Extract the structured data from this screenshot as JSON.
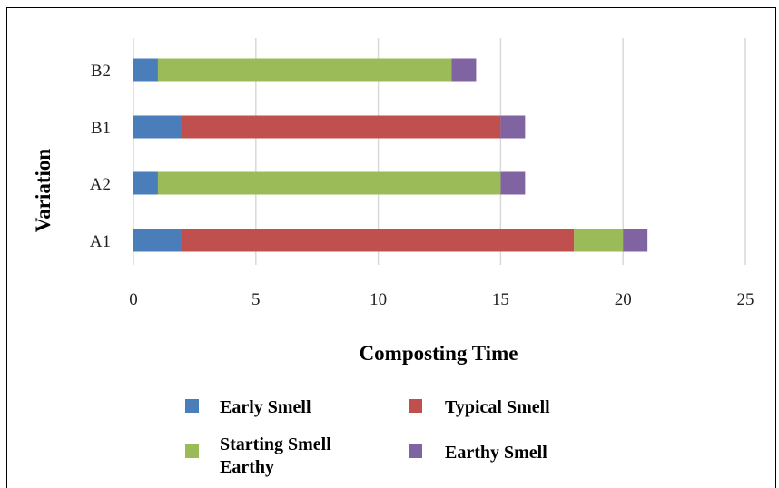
{
  "chart_data": {
    "type": "bar",
    "orientation": "horizontal",
    "stacked": true,
    "categories": [
      "A1",
      "A2",
      "B1",
      "B2"
    ],
    "series": [
      {
        "name": "Early Smell",
        "color": "#4a7ebb",
        "values": [
          2,
          1,
          2,
          1
        ]
      },
      {
        "name": "Typical Smell",
        "color": "#c0504d",
        "values": [
          16,
          0,
          13,
          0
        ]
      },
      {
        "name": "Starting Smell Earthy",
        "legend_lines": [
          "Starting Smell",
          "Earthy"
        ],
        "color": "#9bbb59",
        "values": [
          2,
          14,
          0,
          12
        ]
      },
      {
        "name": "Earthy Smell",
        "color": "#8064a2",
        "values": [
          1,
          1,
          1,
          1
        ]
      }
    ],
    "xlim": [
      0,
      25
    ],
    "xticks": [
      0,
      5,
      10,
      15,
      20,
      25
    ],
    "xlabel": "Composting Time",
    "ylabel": "Variation",
    "title": "",
    "grid": "vertical",
    "legend_position": "bottom"
  }
}
